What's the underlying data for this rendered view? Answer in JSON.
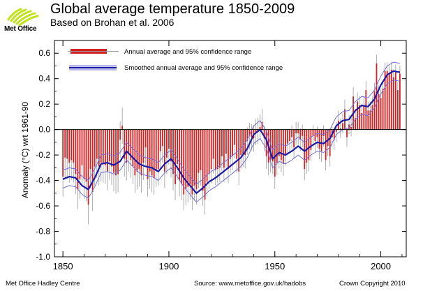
{
  "brand": {
    "name": "Met Office"
  },
  "header": {
    "title": "Global average temperature 1850-2009",
    "subtitle": "Based on Brohan et al. 2006"
  },
  "footer": {
    "left": "Met Office Hadley Centre",
    "center": "Source: www.metoffice.gov.uk/hadobs",
    "right": "Crown Copyright 2010"
  },
  "colors": {
    "bar": "#d42020",
    "smoothed": "#1a1aa8",
    "band": "#6f6fe0",
    "error": "#9a9a9a",
    "zero_line": "#000000"
  },
  "chart_data": {
    "type": "bar",
    "title": "Global average temperature 1850-2009",
    "subtitle": "Based on Brohan et al. 2006",
    "xlabel": "",
    "ylabel": "Anomaly (°C) wrt 1961-90",
    "xlim": [
      1846,
      2012
    ],
    "ylim": [
      -1.0,
      0.7
    ],
    "xticks": [
      1850,
      1900,
      1950,
      2000
    ],
    "yticks": [
      -1.0,
      -0.8,
      -0.6,
      -0.4,
      -0.2,
      0.0,
      0.2,
      0.4,
      0.6
    ],
    "ytick_labels": [
      "-1.0",
      "-0.8",
      "-0.6",
      "-0.4",
      "-0.2",
      "0.0",
      "0.2",
      "0.4",
      "0.6"
    ],
    "grid": false,
    "legend": {
      "placement": "top-left",
      "entries": [
        "Annual average and 95% confidence range",
        "Smoothed annual average and 95% confidence range"
      ]
    },
    "series": [
      {
        "name": "Annual average and 95% confidence range",
        "type": "bar",
        "x_start": 1850,
        "x_end": 2009,
        "values": [
          -0.37,
          -0.22,
          -0.23,
          -0.26,
          -0.24,
          -0.26,
          -0.35,
          -0.47,
          -0.39,
          -0.28,
          -0.39,
          -0.41,
          -0.59,
          -0.31,
          -0.49,
          -0.29,
          -0.23,
          -0.29,
          -0.26,
          -0.27,
          -0.28,
          -0.33,
          -0.25,
          -0.29,
          -0.34,
          -0.36,
          -0.35,
          -0.08,
          0.03,
          -0.23,
          -0.26,
          -0.19,
          -0.24,
          -0.29,
          -0.36,
          -0.33,
          -0.31,
          -0.36,
          -0.26,
          -0.14,
          -0.39,
          -0.33,
          -0.36,
          -0.38,
          -0.32,
          -0.31,
          -0.17,
          -0.13,
          -0.33,
          -0.22,
          -0.15,
          -0.25,
          -0.35,
          -0.43,
          -0.27,
          -0.4,
          -0.43,
          -0.51,
          -0.47,
          -0.45,
          -0.43,
          -0.51,
          -0.44,
          -0.47,
          -0.34,
          -0.32,
          -0.48,
          -0.55,
          -0.41,
          -0.35,
          -0.31,
          -0.23,
          -0.32,
          -0.31,
          -0.3,
          -0.21,
          -0.3,
          -0.19,
          -0.31,
          -0.23,
          -0.21,
          -0.12,
          -0.23,
          -0.33,
          -0.2,
          -0.19,
          -0.2,
          -0.09,
          -0.05,
          -0.06,
          -0.07,
          -0.02,
          -0.01,
          0.02,
          0.06,
          -0.07,
          -0.21,
          -0.26,
          -0.24,
          -0.25,
          -0.37,
          -0.26,
          -0.21,
          -0.24,
          -0.27,
          -0.19,
          -0.11,
          -0.09,
          -0.06,
          -0.14,
          -0.03,
          -0.03,
          -0.08,
          -0.05,
          -0.31,
          -0.26,
          -0.24,
          -0.16,
          -0.05,
          -0.09,
          -0.06,
          -0.15,
          -0.17,
          -0.05,
          -0.24,
          -0.13,
          -0.21,
          -0.06,
          -0.08,
          -0.02,
          0.07,
          0.01,
          0.05,
          0.16,
          -0.06,
          0.04,
          0.02,
          0.26,
          0.09,
          0.22,
          0.19,
          0.13,
          0.19,
          0.31,
          0.15,
          0.15,
          0.19,
          0.3,
          0.52,
          0.28,
          0.25,
          0.32,
          0.46,
          0.46,
          0.44,
          0.47,
          0.41,
          0.45,
          0.31,
          0.44
        ]
      },
      {
        "name": "Smoothed annual average and 95% confidence range",
        "type": "line",
        "x": [
          1850,
          1853,
          1856,
          1859,
          1862,
          1865,
          1868,
          1871,
          1874,
          1877,
          1880,
          1883,
          1886,
          1889,
          1892,
          1895,
          1898,
          1901,
          1904,
          1907,
          1910,
          1913,
          1916,
          1919,
          1922,
          1925,
          1928,
          1931,
          1934,
          1937,
          1940,
          1943,
          1946,
          1949,
          1952,
          1955,
          1958,
          1961,
          1964,
          1967,
          1970,
          1973,
          1976,
          1979,
          1982,
          1985,
          1988,
          1991,
          1994,
          1997,
          2000,
          2003,
          2006,
          2009
        ],
        "values": [
          -0.39,
          -0.37,
          -0.38,
          -0.44,
          -0.47,
          -0.38,
          -0.27,
          -0.26,
          -0.28,
          -0.25,
          -0.17,
          -0.22,
          -0.27,
          -0.29,
          -0.3,
          -0.33,
          -0.27,
          -0.23,
          -0.3,
          -0.38,
          -0.44,
          -0.5,
          -0.46,
          -0.41,
          -0.38,
          -0.34,
          -0.3,
          -0.26,
          -0.22,
          -0.15,
          -0.04,
          0.0,
          -0.08,
          -0.23,
          -0.18,
          -0.2,
          -0.17,
          -0.13,
          -0.17,
          -0.13,
          -0.1,
          -0.11,
          -0.07,
          0.03,
          0.07,
          0.08,
          0.15,
          0.19,
          0.18,
          0.24,
          0.35,
          0.43,
          0.46,
          0.45
        ],
        "band_halfwidth": 0.07
      }
    ]
  }
}
